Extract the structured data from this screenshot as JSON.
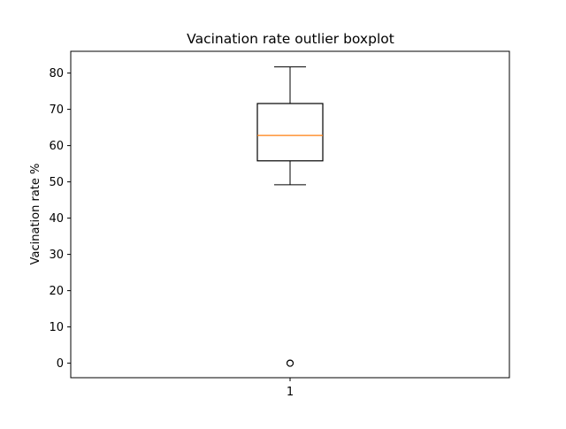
{
  "chart_data": {
    "type": "boxplot",
    "title": "Vacination rate outlier boxplot",
    "xlabel": "",
    "ylabel": "Vacination rate %",
    "categories": [
      "1"
    ],
    "ylim": [
      -4,
      86
    ],
    "yticks": [
      0,
      10,
      20,
      30,
      40,
      50,
      60,
      70,
      80
    ],
    "grid": false,
    "boxes": [
      {
        "category": "1",
        "whisker_low": 49.2,
        "q1": 55.8,
        "median": 62.8,
        "q3": 71.6,
        "whisker_high": 81.7,
        "outliers": [
          0,
          0,
          0
        ]
      }
    ],
    "colors": {
      "box": "#000000",
      "median": "#ff7f0e",
      "outlier": "#000000"
    }
  }
}
